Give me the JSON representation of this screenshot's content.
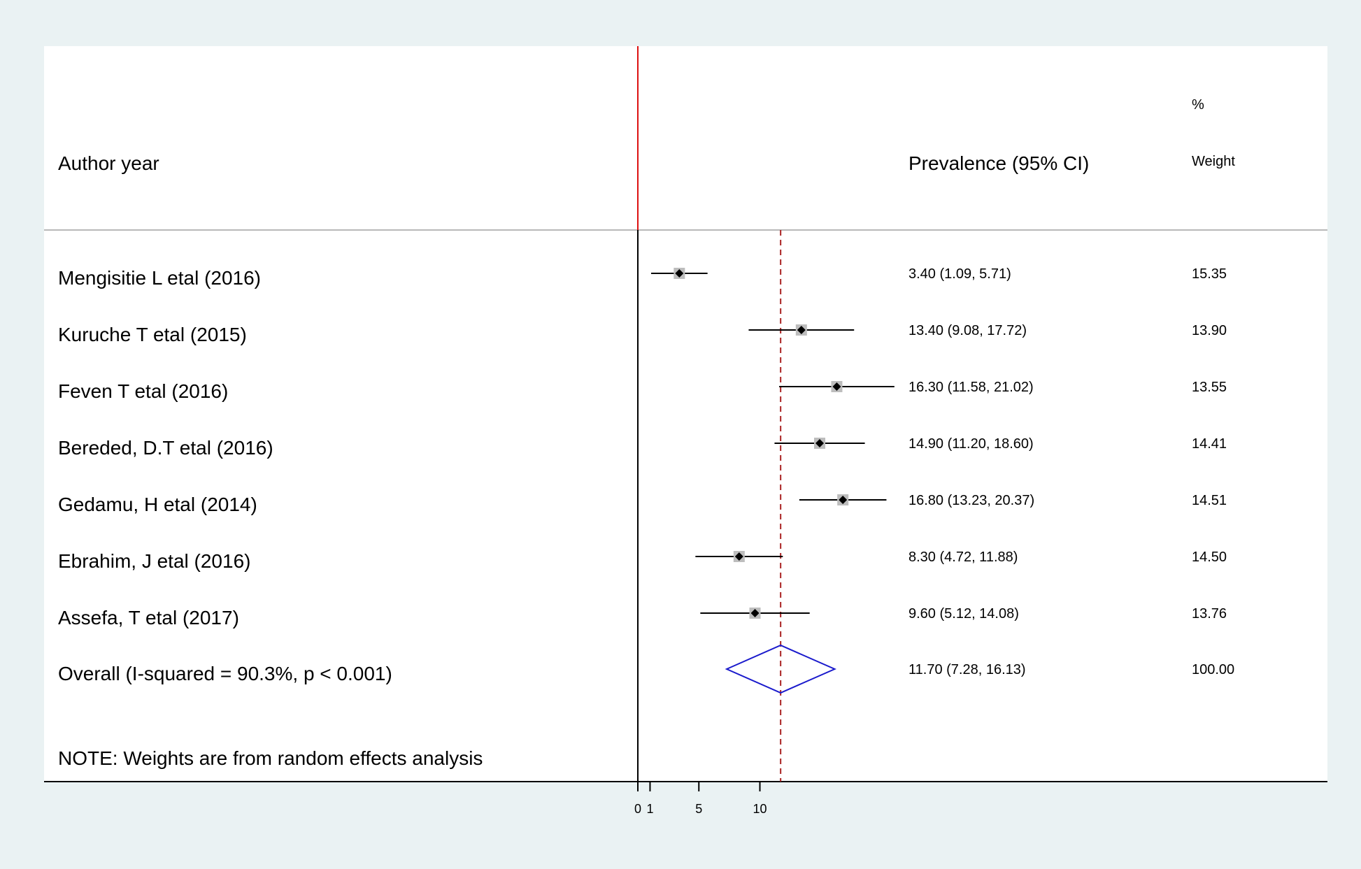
{
  "chart_data": {
    "type": "forest",
    "headers": {
      "study": "Author year",
      "estimate": "Prevalence (95% CI)",
      "weight_line1": "%",
      "weight_line2": "Weight"
    },
    "studies": [
      {
        "label": "Mengisitie L etal (2016)",
        "estimate": 3.4,
        "lower": 1.09,
        "upper": 5.71,
        "ci_text": "3.40 (1.09, 5.71)",
        "weight": "15.35"
      },
      {
        "label": "Kuruche T etal (2015)",
        "estimate": 13.4,
        "lower": 9.08,
        "upper": 17.72,
        "ci_text": "13.40 (9.08, 17.72)",
        "weight": "13.90"
      },
      {
        "label": "Feven T  etal (2016)",
        "estimate": 16.3,
        "lower": 11.58,
        "upper": 21.02,
        "ci_text": "16.30 (11.58, 21.02)",
        "weight": "13.55"
      },
      {
        "label": "Bereded, D.T etal (2016)",
        "estimate": 14.9,
        "lower": 11.2,
        "upper": 18.6,
        "ci_text": "14.90 (11.20, 18.60)",
        "weight": "14.41"
      },
      {
        "label": "Gedamu, H etal (2014)",
        "estimate": 16.8,
        "lower": 13.23,
        "upper": 20.37,
        "ci_text": "16.80 (13.23, 20.37)",
        "weight": "14.51"
      },
      {
        "label": "Ebrahim, J etal (2016)",
        "estimate": 8.3,
        "lower": 4.72,
        "upper": 11.88,
        "ci_text": "8.30 (4.72, 11.88)",
        "weight": "14.50"
      },
      {
        "label": "Assefa, T etal  (2017)",
        "estimate": 9.6,
        "lower": 5.12,
        "upper": 14.08,
        "ci_text": "9.60 (5.12, 14.08)",
        "weight": "13.76"
      }
    ],
    "overall": {
      "label": "Overall  (I-squared = 90.3%, p < 0.001)",
      "estimate": 11.7,
      "lower": 7.28,
      "upper": 16.13,
      "ci_text": "11.70 (7.28, 16.13)",
      "weight": "100.00"
    },
    "note": "NOTE: Weights are from random effects analysis",
    "x_ticks": [
      "0",
      "1",
      "5",
      "10"
    ],
    "xlim": [
      0,
      21.0
    ],
    "null_line": 0,
    "colors": {
      "background": "#eaf2f3",
      "panel": "#ffffff",
      "null_line": "#dd1111",
      "overall_line": "#aa2222",
      "diamond": "#1a1acc",
      "box": "#bdbdbd",
      "text": "#000000",
      "divider": "#b8b8b8"
    }
  }
}
